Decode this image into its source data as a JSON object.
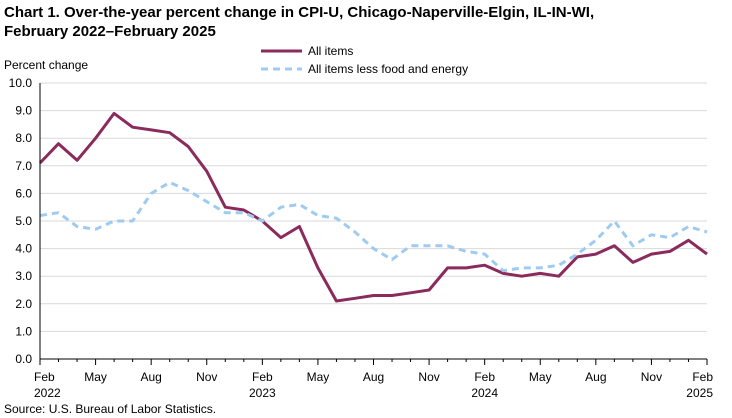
{
  "title_line1": "Chart 1. Over-the-year percent change in CPI-U, Chicago-Naperville-Elgin,  IL-IN-WI,",
  "title_line2": "February 2022–February 2025",
  "source": "Source: U.S. Bureau  of Labor Statistics.",
  "colors": {
    "all_items": "#8b2a5c",
    "core": "#9fcbf0",
    "grid": "#d9d9d9",
    "axis": "#000000"
  },
  "chart_data": {
    "type": "line",
    "ylabel": "Percent change",
    "xlabel": "",
    "ylim": [
      0,
      10
    ],
    "ytick_labels": [
      "0.0",
      "1.0",
      "2.0",
      "3.0",
      "4.0",
      "5.0",
      "6.0",
      "7.0",
      "8.0",
      "9.0",
      "10.0"
    ],
    "grid": true,
    "legend_position": "top",
    "x_tick_labels": [
      {
        "index": 0,
        "month": "Feb",
        "year": "2022"
      },
      {
        "index": 3,
        "month": "May",
        "year": ""
      },
      {
        "index": 6,
        "month": "Aug",
        "year": ""
      },
      {
        "index": 9,
        "month": "Nov",
        "year": ""
      },
      {
        "index": 12,
        "month": "Feb",
        "year": "2023"
      },
      {
        "index": 15,
        "month": "May",
        "year": ""
      },
      {
        "index": 18,
        "month": "Aug",
        "year": ""
      },
      {
        "index": 21,
        "month": "Nov",
        "year": ""
      },
      {
        "index": 24,
        "month": "Feb",
        "year": "2024"
      },
      {
        "index": 27,
        "month": "May",
        "year": ""
      },
      {
        "index": 30,
        "month": "Aug",
        "year": ""
      },
      {
        "index": 33,
        "month": "Nov",
        "year": ""
      },
      {
        "index": 36,
        "month": "Feb",
        "year": "2025"
      }
    ],
    "series": [
      {
        "name": "All items",
        "style": "solid",
        "values": [
          7.1,
          7.8,
          7.2,
          8.0,
          8.9,
          8.4,
          8.3,
          8.2,
          7.7,
          6.8,
          5.5,
          5.4,
          5.0,
          4.4,
          4.8,
          3.3,
          2.1,
          2.2,
          2.3,
          2.3,
          2.4,
          2.5,
          3.3,
          3.3,
          3.4,
          3.1,
          3.0,
          3.1,
          3.0,
          3.7,
          3.8,
          4.1,
          3.5,
          3.8,
          3.9,
          4.3,
          3.8
        ]
      },
      {
        "name": "All items less food and energy",
        "style": "dashed",
        "values": [
          5.2,
          5.3,
          4.8,
          4.7,
          5.0,
          5.0,
          6.0,
          6.4,
          6.1,
          5.7,
          5.3,
          5.3,
          5.0,
          5.5,
          5.6,
          5.2,
          5.1,
          4.6,
          4.0,
          3.6,
          4.1,
          4.1,
          4.1,
          3.9,
          3.8,
          3.2,
          3.3,
          3.3,
          3.4,
          3.8,
          4.3,
          5.0,
          4.1,
          4.5,
          4.4,
          4.8,
          4.6
        ]
      }
    ]
  }
}
